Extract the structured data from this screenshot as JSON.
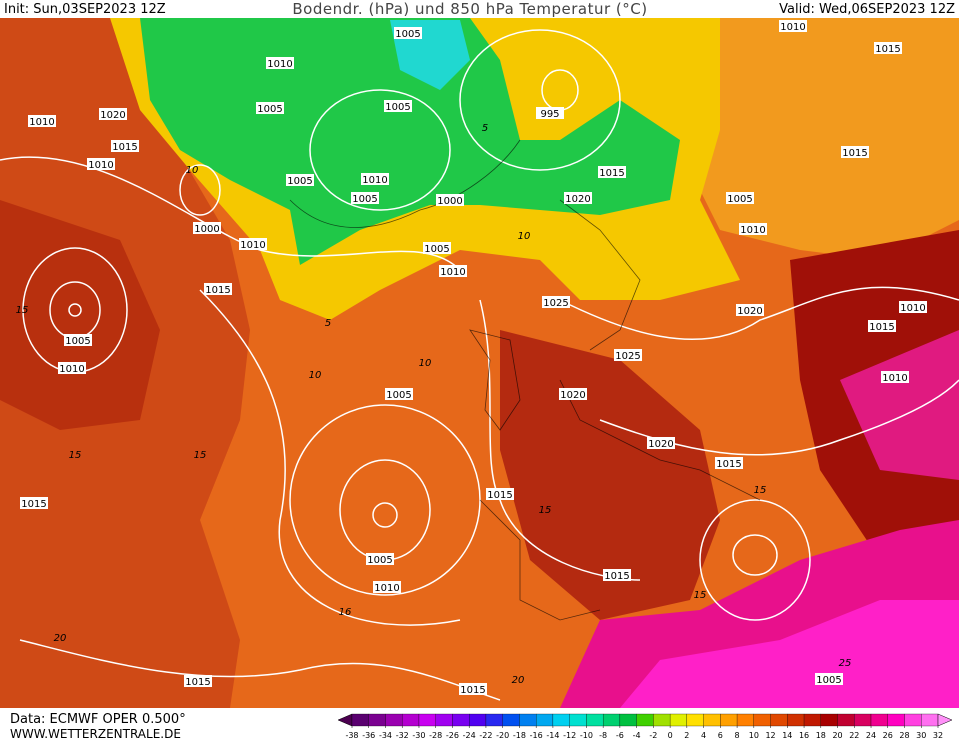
{
  "header": {
    "init": "Init: Sun,03SEP2023 12Z",
    "title": "Bodendr. (hPa) und 850 hPa Temperatur (°C)",
    "valid": "Valid: Wed,06SEP2023 12Z"
  },
  "footer": {
    "source": "Data: ECMWF OPER 0.500°",
    "website": "WWW.WETTERZENTRALE.DE"
  },
  "legend": {
    "ticks": [
      -38,
      -36,
      -34,
      -32,
      -30,
      -28,
      -26,
      -24,
      -22,
      -20,
      -18,
      -16,
      -14,
      -12,
      -10,
      -8,
      -6,
      -4,
      -2,
      0,
      2,
      4,
      6,
      8,
      10,
      12,
      14,
      16,
      18,
      20,
      22,
      24,
      26,
      28,
      30,
      32
    ],
    "colors": [
      "#5a0070",
      "#7a0090",
      "#9a00b0",
      "#b400d0",
      "#c800f0",
      "#a000f0",
      "#7800f0",
      "#5000f0",
      "#2828f0",
      "#0050f0",
      "#0080f0",
      "#00a8f0",
      "#00d0f0",
      "#00e0d0",
      "#00e0a0",
      "#00d070",
      "#00c040",
      "#40d000",
      "#a0e000",
      "#e0f000",
      "#ffe000",
      "#ffc000",
      "#ffa000",
      "#ff8000",
      "#f06000",
      "#e04800",
      "#d03000",
      "#c01800",
      "#a80000",
      "#c00030",
      "#d80060",
      "#f00090",
      "#ff00c0",
      "#ff40e0",
      "#ff70f0"
    ],
    "low_color": "#4b0050",
    "high_color": "#ff90f8"
  },
  "isobar_labels": [
    "1005",
    "1010",
    "1020",
    "1010",
    "1015",
    "1010",
    "1005",
    "1005",
    "995",
    "1005",
    "1010",
    "1005",
    "1000",
    "1020",
    "1015",
    "1005",
    "1010",
    "1015",
    "1015",
    "1010",
    "1000",
    "1010",
    "1005",
    "1010",
    "1015",
    "1025",
    "1020",
    "1005",
    "1010",
    "1025",
    "1005",
    "1020",
    "1020",
    "1015",
    "1015",
    "1015",
    "1005",
    "1010",
    "1015",
    "1015",
    "1015",
    "1005",
    "1015",
    "1010",
    "1010"
  ],
  "isotherm_labels": [
    "5",
    "5",
    "10",
    "10",
    "10",
    "15",
    "15",
    "15",
    "15",
    "15",
    "16",
    "20",
    "20",
    "25",
    "15",
    "10"
  ]
}
